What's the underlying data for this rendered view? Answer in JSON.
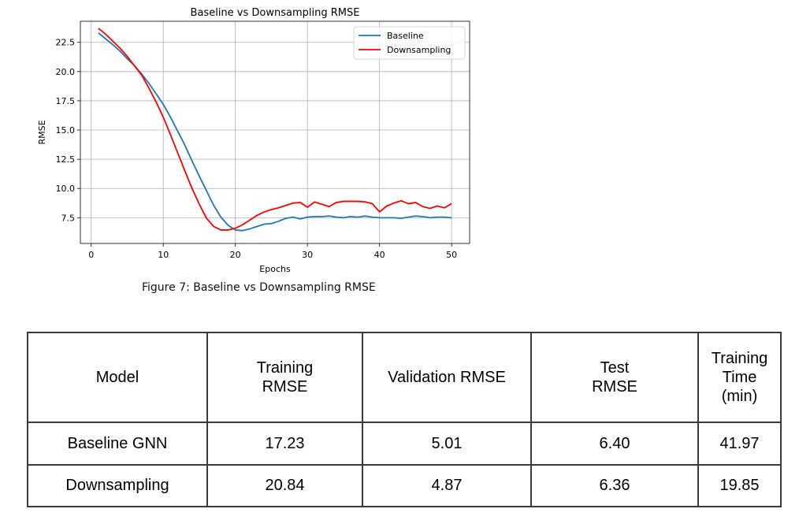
{
  "chart_data": {
    "type": "line",
    "title": "Baseline vs Downsampling RMSE",
    "xlabel": "Epochs",
    "ylabel": "RMSE",
    "xlim": [
      -1.5,
      52.5
    ],
    "ylim": [
      5.3,
      24.3
    ],
    "xticks": [
      0,
      10,
      20,
      30,
      40,
      50
    ],
    "yticks": [
      7.5,
      10.0,
      12.5,
      15.0,
      17.5,
      20.0,
      22.5
    ],
    "grid": true,
    "legend_position": "top-right",
    "x": [
      1,
      2,
      3,
      4,
      5,
      6,
      7,
      8,
      9,
      10,
      11,
      12,
      13,
      14,
      15,
      16,
      17,
      18,
      19,
      20,
      21,
      22,
      23,
      24,
      25,
      26,
      27,
      28,
      29,
      30,
      31,
      32,
      33,
      34,
      35,
      36,
      37,
      38,
      39,
      40,
      41,
      42,
      43,
      44,
      45,
      46,
      47,
      48,
      49,
      50
    ],
    "series": [
      {
        "name": "Baseline",
        "color": "#1f77b4",
        "values": [
          23.3,
          22.8,
          22.3,
          21.75,
          21.1,
          20.5,
          19.8,
          19.0,
          18.1,
          17.2,
          16.1,
          14.9,
          13.7,
          12.35,
          11.05,
          9.8,
          8.55,
          7.55,
          6.85,
          6.45,
          6.4,
          6.55,
          6.75,
          6.95,
          7.0,
          7.2,
          7.45,
          7.55,
          7.4,
          7.55,
          7.6,
          7.6,
          7.65,
          7.55,
          7.5,
          7.6,
          7.55,
          7.65,
          7.55,
          7.5,
          7.5,
          7.5,
          7.45,
          7.55,
          7.65,
          7.6,
          7.5,
          7.55,
          7.55,
          7.5
        ]
      },
      {
        "name": "Downsampling",
        "color": "#ff0000",
        "values": [
          23.7,
          23.2,
          22.6,
          22.0,
          21.3,
          20.5,
          19.7,
          18.6,
          17.4,
          16.1,
          14.6,
          13.05,
          11.5,
          10.0,
          8.65,
          7.45,
          6.75,
          6.45,
          6.45,
          6.6,
          6.9,
          7.3,
          7.7,
          8.0,
          8.2,
          8.35,
          8.55,
          8.75,
          8.8,
          8.4,
          8.85,
          8.65,
          8.45,
          8.8,
          8.9,
          8.9,
          8.9,
          8.85,
          8.7,
          8.0,
          8.5,
          8.75,
          8.95,
          8.7,
          8.8,
          8.45,
          8.3,
          8.5,
          8.35,
          8.7
        ]
      }
    ]
  },
  "figure_caption": "Figure 7: Baseline vs Downsampling RMSE",
  "table": {
    "headers": [
      "Model",
      "Training\nRMSE",
      "Validation RMSE",
      "Test\nRMSE",
      "Training\nTime (min)"
    ],
    "rows": [
      [
        "Baseline GNN",
        "17.23",
        "5.01",
        "6.40",
        "41.97"
      ],
      [
        "Downsampling",
        "20.84",
        "4.87",
        "6.36",
        "19.85"
      ]
    ]
  }
}
